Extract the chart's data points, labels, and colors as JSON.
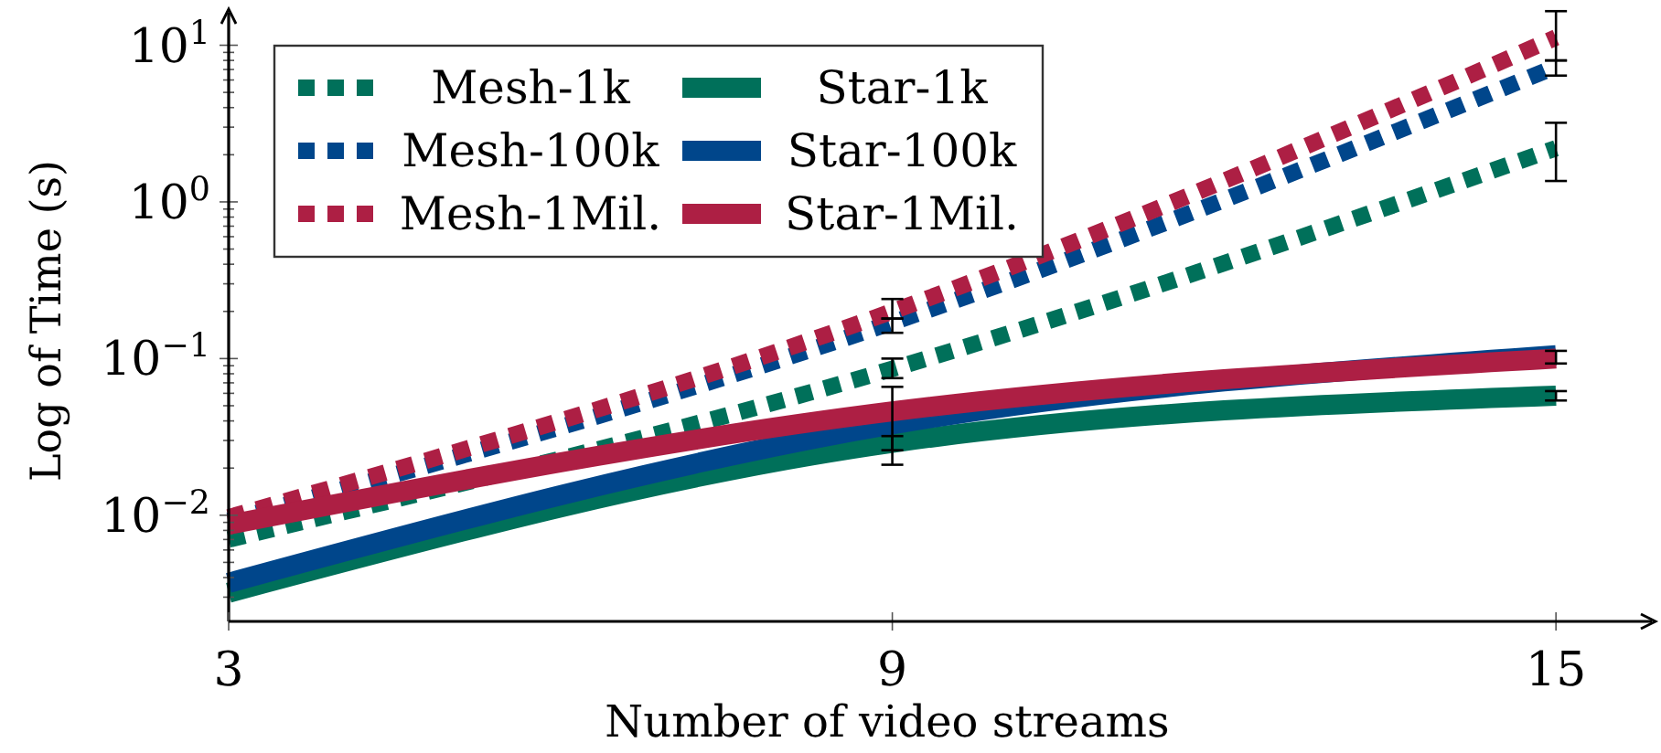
{
  "chart_data": {
    "type": "line",
    "xlabel": "Number of video streams",
    "ylabel": "Log of Time (s)",
    "x": [
      3,
      9,
      15
    ],
    "xlim": [
      3,
      15.9
    ],
    "xticks": [
      3,
      9,
      15
    ],
    "ylim": [
      0.0021,
      17
    ],
    "log": "y",
    "yticks": [
      {
        "value": 0.003,
        "label": null
      },
      {
        "value": 0.004,
        "label": null
      },
      {
        "value": 0.005,
        "label": null
      },
      {
        "value": 0.006,
        "label": null
      },
      {
        "value": 0.007,
        "label": null
      },
      {
        "value": 0.008,
        "label": null
      },
      {
        "value": 0.009,
        "label": null
      },
      {
        "value": 0.01,
        "label": "10$^{−2}$"
      },
      {
        "value": 0.02,
        "label": null
      },
      {
        "value": 0.03,
        "label": null
      },
      {
        "value": 0.04,
        "label": null
      },
      {
        "value": 0.05,
        "label": null
      },
      {
        "value": 0.06,
        "label": null
      },
      {
        "value": 0.07,
        "label": null
      },
      {
        "value": 0.08,
        "label": null
      },
      {
        "value": 0.09,
        "label": null
      },
      {
        "value": 0.1,
        "label": "10$^{−1}$"
      },
      {
        "value": 0.2,
        "label": null
      },
      {
        "value": 0.3,
        "label": null
      },
      {
        "value": 0.4,
        "label": null
      },
      {
        "value": 0.5,
        "label": null
      },
      {
        "value": 0.6,
        "label": null
      },
      {
        "value": 0.7,
        "label": null
      },
      {
        "value": 0.8,
        "label": null
      },
      {
        "value": 0.9,
        "label": null
      },
      {
        "value": 1,
        "label": "10$^{0}$"
      },
      {
        "value": 2,
        "label": null
      },
      {
        "value": 3,
        "label": null
      },
      {
        "value": 4,
        "label": null
      },
      {
        "value": 5,
        "label": null
      },
      {
        "value": 6,
        "label": null
      },
      {
        "value": 7,
        "label": null
      },
      {
        "value": 8,
        "label": null
      },
      {
        "value": 9,
        "label": null
      },
      {
        "value": 10,
        "label": "10$^{1}$"
      }
    ],
    "legend": "top left",
    "series": [
      {
        "name": "Mesh-1k",
        "color": "#00705a",
        "line_style": "dotted",
        "values": [
          0.007,
          0.086,
          2.2
        ],
        "errors": [
          null,
          [
            0.075,
            0.1
          ],
          [
            1.36,
            3.2
          ]
        ]
      },
      {
        "name": "Mesh-100k",
        "color": "#00468b",
        "line_style": "dotted",
        "values": [
          0.0092,
          0.17,
          7.3
        ],
        "errors": [
          null,
          [
            0.146,
            0.18
          ],
          [
            6.4,
            8.0
          ]
        ]
      },
      {
        "name": "Mesh-1Mil.",
        "color": "#ad1f44",
        "line_style": "dotted",
        "values": [
          0.0097,
          0.2,
          11.2
        ],
        "errors": [
          null,
          [
            0.18,
            0.24
          ],
          [
            8.0,
            16.5
          ]
        ]
      },
      {
        "name": "Star-1k",
        "color": "#00705a",
        "line_style": "solid",
        "values": [
          0.0032,
          0.029,
          0.058
        ],
        "errors": [
          null,
          [
            0.026,
            0.032
          ],
          [
            0.054,
            0.062
          ]
        ]
      },
      {
        "name": "Star-100k",
        "color": "#00468b",
        "line_style": "solid",
        "values": [
          0.0037,
          0.038,
          0.105
        ],
        "errors": [
          null,
          [
            0.021,
            0.066
          ],
          [
            0.093,
            0.112
          ]
        ]
      },
      {
        "name": "Star-1Mil.",
        "color": "#ad1f44",
        "line_style": "solid",
        "values": [
          0.0087,
          0.046,
          0.1
        ]
      }
    ]
  }
}
